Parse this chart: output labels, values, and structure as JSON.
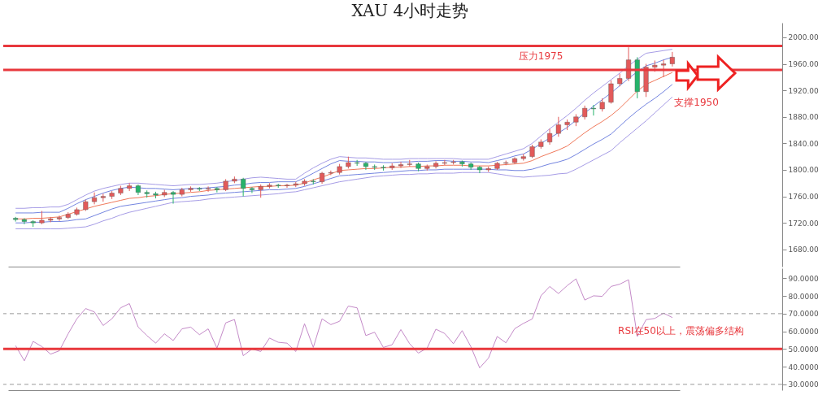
{
  "chart_data": [
    {
      "type": "candlestick",
      "title": "XAU 4小时走势",
      "ylim": [
        1654,
        2022
      ],
      "tick_labels": "y",
      "yticks": [
        {
          "value": 1680,
          "label": "1680.00"
        },
        {
          "value": 1720,
          "label": "1720.00"
        },
        {
          "value": 1760,
          "label": "1760.00"
        },
        {
          "value": 1800,
          "label": "1800.00"
        },
        {
          "value": 1840,
          "label": "1840.00"
        },
        {
          "value": 1880,
          "label": "1880.00"
        },
        {
          "value": 1920,
          "label": "1920.00"
        },
        {
          "value": 1960,
          "label": "1960.00"
        },
        {
          "value": 2000,
          "label": "2000.00"
        }
      ],
      "categories": [
        null,
        null,
        null,
        null,
        null,
        null,
        null,
        null,
        null,
        null,
        null,
        null,
        null,
        null,
        null,
        null,
        null,
        null,
        null,
        null,
        null,
        null,
        null,
        null,
        null,
        null,
        null,
        null,
        null,
        null,
        null,
        null,
        null,
        null,
        null,
        null,
        null,
        null,
        null,
        null,
        null,
        null,
        null,
        null,
        null,
        null,
        null,
        null,
        null,
        null,
        null,
        null,
        null,
        null,
        null,
        null,
        null,
        null,
        null,
        null,
        null,
        null,
        null,
        null,
        null,
        null,
        null,
        null,
        null,
        null,
        null,
        null,
        null,
        null,
        null,
        null
      ],
      "ohlc": [
        [
          1727,
          1729,
          1722,
          1725
        ],
        [
          1725,
          1727,
          1718,
          1722
        ],
        [
          1722,
          1724,
          1714,
          1720
        ],
        [
          1720,
          1738,
          1718,
          1724
        ],
        [
          1724,
          1729,
          1721,
          1726
        ],
        [
          1726,
          1731,
          1723,
          1728
        ],
        [
          1728,
          1736,
          1726,
          1733
        ],
        [
          1733,
          1743,
          1731,
          1740
        ],
        [
          1740,
          1755,
          1738,
          1752
        ],
        [
          1752,
          1766,
          1748,
          1758
        ],
        [
          1758,
          1764,
          1752,
          1760
        ],
        [
          1760,
          1768,
          1756,
          1765
        ],
        [
          1765,
          1776,
          1762,
          1772
        ],
        [
          1772,
          1780,
          1768,
          1776
        ],
        [
          1776,
          1778,
          1762,
          1766
        ],
        [
          1766,
          1769,
          1758,
          1764
        ],
        [
          1764,
          1767,
          1757,
          1762
        ],
        [
          1762,
          1770,
          1759,
          1766
        ],
        [
          1766,
          1768,
          1749,
          1763
        ],
        [
          1763,
          1773,
          1760,
          1770
        ],
        [
          1770,
          1775,
          1767,
          1772
        ],
        [
          1772,
          1774,
          1768,
          1771
        ],
        [
          1771,
          1775,
          1767,
          1772
        ],
        [
          1772,
          1774,
          1766,
          1770
        ],
        [
          1770,
          1786,
          1768,
          1783
        ],
        [
          1783,
          1790,
          1780,
          1786
        ],
        [
          1786,
          1788,
          1760,
          1772
        ],
        [
          1772,
          1774,
          1765,
          1770
        ],
        [
          1770,
          1778,
          1758,
          1775
        ],
        [
          1775,
          1780,
          1772,
          1777
        ],
        [
          1777,
          1779,
          1773,
          1776
        ],
        [
          1776,
          1779,
          1773,
          1777
        ],
        [
          1777,
          1782,
          1774,
          1779
        ],
        [
          1779,
          1786,
          1776,
          1783
        ],
        [
          1783,
          1786,
          1778,
          1782
        ],
        [
          1782,
          1797,
          1779,
          1795
        ],
        [
          1795,
          1799,
          1792,
          1796
        ],
        [
          1796,
          1809,
          1793,
          1805
        ],
        [
          1805,
          1820,
          1802,
          1811
        ],
        [
          1811,
          1815,
          1806,
          1810
        ],
        [
          1810,
          1812,
          1800,
          1805
        ],
        [
          1805,
          1808,
          1800,
          1804
        ],
        [
          1804,
          1807,
          1799,
          1803
        ],
        [
          1803,
          1810,
          1800,
          1806
        ],
        [
          1806,
          1812,
          1803,
          1808
        ],
        [
          1808,
          1815,
          1805,
          1809
        ],
        [
          1809,
          1811,
          1798,
          1802
        ],
        [
          1802,
          1808,
          1799,
          1805
        ],
        [
          1805,
          1813,
          1802,
          1810
        ],
        [
          1810,
          1815,
          1807,
          1811
        ],
        [
          1811,
          1815,
          1808,
          1812
        ],
        [
          1812,
          1814,
          1805,
          1809
        ],
        [
          1809,
          1811,
          1800,
          1804
        ],
        [
          1804,
          1806,
          1795,
          1800
        ],
        [
          1800,
          1805,
          1797,
          1802
        ],
        [
          1802,
          1812,
          1800,
          1810
        ],
        [
          1810,
          1814,
          1807,
          1811
        ],
        [
          1811,
          1819,
          1809,
          1817
        ],
        [
          1817,
          1824,
          1814,
          1820
        ],
        [
          1820,
          1838,
          1818,
          1835
        ],
        [
          1835,
          1846,
          1832,
          1842
        ],
        [
          1842,
          1862,
          1838,
          1855
        ],
        [
          1855,
          1880,
          1850,
          1868
        ],
        [
          1868,
          1876,
          1860,
          1872
        ],
        [
          1872,
          1884,
          1866,
          1880
        ],
        [
          1880,
          1897,
          1876,
          1893
        ],
        [
          1893,
          1898,
          1882,
          1892
        ],
        [
          1892,
          1908,
          1888,
          1902
        ],
        [
          1902,
          1935,
          1900,
          1930
        ],
        [
          1930,
          1945,
          1926,
          1938
        ],
        [
          1938,
          1985,
          1934,
          1966
        ],
        [
          1966,
          1970,
          1908,
          1918
        ],
        [
          1918,
          1960,
          1910,
          1955
        ],
        [
          1955,
          1965,
          1948,
          1958
        ],
        [
          1958,
          1966,
          1940,
          1960
        ],
        [
          1960,
          1978,
          1956,
          1970
        ]
      ],
      "series": [
        {
          "type": "line",
          "color": "#a69ce6",
          "values": [
            1742,
            1742,
            1743,
            1743,
            1744,
            1744,
            1748,
            1755,
            1762,
            1768,
            1772,
            1775,
            1778,
            1780,
            1780,
            1779,
            1778,
            1777,
            1776,
            1777,
            1778,
            1778,
            1779,
            1780,
            1782,
            1784,
            1786,
            1788,
            1789,
            1788,
            1787,
            1786,
            1786,
            1795,
            1803,
            1810,
            1816,
            1820,
            1819,
            1818,
            1818,
            1817,
            1816,
            1816,
            1816,
            1817,
            1817,
            1817,
            1817,
            1817,
            1817,
            1816,
            1816,
            1816,
            1816,
            1820,
            1824,
            1828,
            1832,
            1840,
            1851,
            1862,
            1872,
            1882,
            1893,
            1905,
            1916,
            1926,
            1936,
            1946,
            1957,
            1967,
            1976,
            1978,
            1980,
            1982
          ]
        },
        {
          "type": "line",
          "color": "#7384e0",
          "values": [
            1735,
            1735,
            1735,
            1736,
            1736,
            1736,
            1742,
            1749,
            1755,
            1760,
            1765,
            1769,
            1772,
            1774,
            1773,
            1772,
            1772,
            1771,
            1770,
            1771,
            1772,
            1772,
            1773,
            1774,
            1775,
            1777,
            1778,
            1780,
            1781,
            1781,
            1782,
            1782,
            1782,
            1788,
            1795,
            1802,
            1809,
            1814,
            1813,
            1813,
            1812,
            1812,
            1811,
            1811,
            1812,
            1812,
            1813,
            1813,
            1814,
            1814,
            1813,
            1813,
            1812,
            1812,
            1811,
            1814,
            1817,
            1821,
            1824,
            1831,
            1840,
            1848,
            1856,
            1864,
            1875,
            1886,
            1896,
            1906,
            1916,
            1927,
            1938,
            1948,
            1957,
            1961,
            1966,
            1970
          ]
        },
        {
          "type": "line",
          "color": "#f0785a",
          "values": [
            1726,
            1726,
            1727,
            1727,
            1728,
            1729,
            1733,
            1737,
            1741,
            1745,
            1748,
            1751,
            1754,
            1757,
            1758,
            1760,
            1761,
            1763,
            1764,
            1765,
            1766,
            1767,
            1769,
            1770,
            1771,
            1772,
            1773,
            1774,
            1775,
            1775,
            1776,
            1776,
            1777,
            1780,
            1785,
            1789,
            1794,
            1799,
            1800,
            1801,
            1802,
            1802,
            1803,
            1804,
            1804,
            1805,
            1805,
            1806,
            1806,
            1807,
            1807,
            1807,
            1806,
            1806,
            1806,
            1807,
            1808,
            1809,
            1810,
            1814,
            1820,
            1825,
            1830,
            1836,
            1846,
            1856,
            1865,
            1873,
            1882,
            1893,
            1906,
            1919,
            1929,
            1935,
            1941,
            1947
          ]
        },
        {
          "type": "line",
          "color": "#7384e0",
          "values": [
            1720,
            1720,
            1721,
            1721,
            1722,
            1722,
            1723,
            1725,
            1726,
            1731,
            1736,
            1741,
            1745,
            1747,
            1749,
            1751,
            1753,
            1755,
            1757,
            1758,
            1760,
            1761,
            1762,
            1764,
            1765,
            1766,
            1767,
            1768,
            1769,
            1770,
            1770,
            1771,
            1772,
            1775,
            1779,
            1783,
            1787,
            1791,
            1792,
            1793,
            1794,
            1795,
            1796,
            1797,
            1798,
            1799,
            1799,
            1800,
            1800,
            1801,
            1801,
            1801,
            1801,
            1801,
            1801,
            1800,
            1800,
            1799,
            1799,
            1801,
            1805,
            1809,
            1812,
            1816,
            1823,
            1831,
            1839,
            1846,
            1854,
            1866,
            1878,
            1889,
            1899,
            1908,
            1918,
            1929
          ]
        },
        {
          "type": "line",
          "color": "#a69ce6",
          "values": [
            1711,
            1711,
            1711,
            1711,
            1711,
            1711,
            1712,
            1713,
            1714,
            1718,
            1723,
            1727,
            1732,
            1736,
            1739,
            1742,
            1745,
            1748,
            1751,
            1752,
            1753,
            1754,
            1756,
            1757,
            1758,
            1759,
            1760,
            1761,
            1762,
            1763,
            1764,
            1766,
            1767,
            1770,
            1773,
            1776,
            1779,
            1782,
            1784,
            1786,
            1788,
            1790,
            1791,
            1792,
            1793,
            1793,
            1794,
            1794,
            1795,
            1795,
            1795,
            1796,
            1796,
            1796,
            1796,
            1794,
            1792,
            1790,
            1789,
            1790,
            1791,
            1792,
            1794,
            1795,
            1801,
            1808,
            1815,
            1822,
            1829,
            1841,
            1852,
            1863,
            1874,
            1886,
            1898,
            1910
          ]
        }
      ],
      "ref_lines": [
        {
          "axis": "y",
          "value": 1987,
          "label": "压力1975",
          "color": "#e8383d"
        },
        {
          "axis": "y",
          "value": 1951,
          "label": "支撑1950",
          "color": "#e8383d"
        }
      ]
    },
    {
      "type": "line",
      "ylim": [
        26.7,
        95.7
      ],
      "tick_labels": "y",
      "yticks": [
        {
          "value": 30,
          "label": "30.0000"
        },
        {
          "value": 40,
          "label": "40.0000"
        },
        {
          "value": 50,
          "label": "50.0000"
        },
        {
          "value": 60,
          "label": "60.0000"
        },
        {
          "value": 70,
          "label": "70.0000"
        },
        {
          "value": 80,
          "label": "80.0000"
        },
        {
          "value": 90,
          "label": "90.0000"
        }
      ],
      "categories": [
        null,
        null,
        null,
        null,
        null,
        null,
        null,
        null,
        null,
        null,
        null,
        null,
        null,
        null,
        null,
        null,
        null,
        null,
        null,
        null,
        null,
        null,
        null,
        null,
        null,
        null,
        null,
        null,
        null,
        null,
        null,
        null,
        null,
        null,
        null,
        null,
        null,
        null,
        null,
        null,
        null,
        null,
        null,
        null,
        null,
        null,
        null,
        null,
        null,
        null,
        null,
        null,
        null,
        null,
        null,
        null,
        null,
        null,
        null,
        null,
        null,
        null,
        null,
        null,
        null,
        null,
        null,
        null,
        null,
        null,
        null,
        null,
        null,
        null,
        null,
        null
      ],
      "series": [
        {
          "color": "#c48ac8",
          "values": [
            51.9,
            43.3,
            54.3,
            51.4,
            47.1,
            49,
            58.6,
            67.1,
            72.9,
            71,
            63.3,
            67.1,
            73.3,
            75.7,
            62.4,
            57.6,
            53.3,
            58.6,
            54.8,
            61.4,
            62.4,
            58.1,
            61.4,
            50.5,
            64.8,
            66.7,
            46.2,
            50,
            48.6,
            56.2,
            53.8,
            53.3,
            48.6,
            64.3,
            50.9,
            67.1,
            63.8,
            65.7,
            74.3,
            73.3,
            57.6,
            59.5,
            50.9,
            52.4,
            61,
            53,
            47.7,
            50.5,
            61.2,
            58.8,
            53,
            60.4,
            51.3,
            39.3,
            44.8,
            57.1,
            53.5,
            61.5,
            64.5,
            67,
            80.1,
            85.4,
            81.4,
            85.9,
            89.7,
            77.7,
            80.1,
            79.8,
            85.4,
            86.7,
            89.2,
            57.1,
            66.6,
            67.3,
            70.3,
            67.8
          ]
        }
      ],
      "ref_lines": [
        {
          "axis": "y",
          "value": 70,
          "color": "#999999",
          "line_style": "dashed"
        },
        {
          "axis": "y",
          "value": 30,
          "color": "#999999",
          "line_style": "dashed"
        },
        {
          "axis": "y",
          "value": 50,
          "color": "#e8383d",
          "label": "RSI在50以上，震荡偏多结构"
        }
      ]
    }
  ]
}
